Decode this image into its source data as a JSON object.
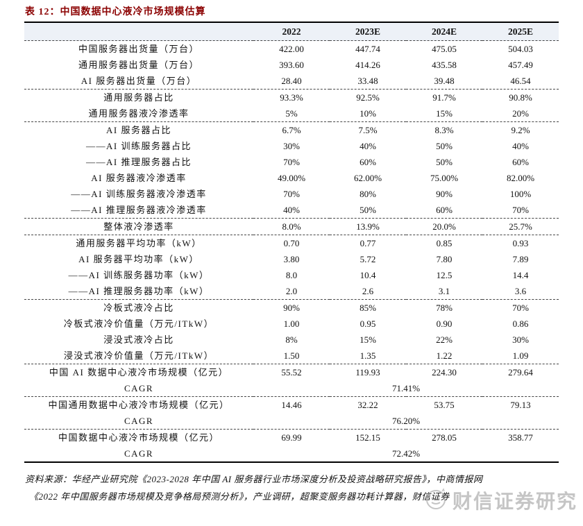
{
  "page": {
    "title": "表 12：中国数据中心液冷市场规模估算",
    "source_line1": "资料来源：华经产业研究院《2023-2028 年中国 AI 服务器行业市场深度分析及投资战略研究报告》，中商情报网",
    "source_line2": "《2022 年中国服务器市场规模及竞争格局预测分析》，产业调研，超聚变服务器功耗计算器，财信证券",
    "watermark": "财信证券研究"
  },
  "colors": {
    "title_red": "#8B0000",
    "header_bg": "#edf1f7",
    "border_black": "#000000",
    "watermark_gray": "#969696"
  },
  "table": {
    "columns": [
      "2022",
      "2023E",
      "2024E",
      "2025E"
    ],
    "rows": [
      {
        "label": "中国服务器出货量（万台）",
        "values": [
          "422.00",
          "447.74",
          "475.05",
          "504.03"
        ],
        "sep": false
      },
      {
        "label": "通用服务器出货量（万台）",
        "values": [
          "393.60",
          "414.26",
          "435.58",
          "457.49"
        ],
        "sep": false
      },
      {
        "label": "AI 服务器出货量（万台）",
        "values": [
          "28.40",
          "33.48",
          "39.48",
          "46.54"
        ],
        "sep": false
      },
      {
        "label": "通用服务器占比",
        "values": [
          "93.3%",
          "92.5%",
          "91.7%",
          "90.8%"
        ],
        "sep": true
      },
      {
        "label": "通用服务器液冷渗透率",
        "values": [
          "5%",
          "10%",
          "15%",
          "20%"
        ],
        "sep": false
      },
      {
        "label": "AI 服务器占比",
        "values": [
          "6.7%",
          "7.5%",
          "8.3%",
          "9.2%"
        ],
        "sep": true
      },
      {
        "label": "——AI 训练服务器占比",
        "values": [
          "30%",
          "40%",
          "50%",
          "40%"
        ],
        "sep": false
      },
      {
        "label": "——AI 推理服务器占比",
        "values": [
          "70%",
          "60%",
          "50%",
          "60%"
        ],
        "sep": false
      },
      {
        "label": "AI 服务器液冷渗透率",
        "values": [
          "49.00%",
          "62.00%",
          "75.00%",
          "82.00%"
        ],
        "sep": false
      },
      {
        "label": "——AI 训练服务器液冷渗透率",
        "values": [
          "70%",
          "80%",
          "90%",
          "100%"
        ],
        "sep": false
      },
      {
        "label": "——AI 推理服务器液冷渗透率",
        "values": [
          "40%",
          "50%",
          "60%",
          "70%"
        ],
        "sep": false
      },
      {
        "label": "整体液冷渗透率",
        "values": [
          "8.0%",
          "13.9%",
          "20.0%",
          "25.7%"
        ],
        "sep": true
      },
      {
        "label": "通用服务器平均功率（kW）",
        "values": [
          "0.70",
          "0.77",
          "0.85",
          "0.93"
        ],
        "sep": true
      },
      {
        "label": "AI 服务器平均功率（kW）",
        "values": [
          "3.80",
          "5.72",
          "7.80",
          "7.89"
        ],
        "sep": false
      },
      {
        "label": "——AI 训练服务器功率（kW）",
        "values": [
          "8.0",
          "10.4",
          "12.5",
          "14.4"
        ],
        "sep": false
      },
      {
        "label": "——AI 推理服务器功率（kW）",
        "values": [
          "2.0",
          "2.6",
          "3.1",
          "3.6"
        ],
        "sep": false
      },
      {
        "label": "冷板式液冷占比",
        "values": [
          "90%",
          "85%",
          "78%",
          "70%"
        ],
        "sep": true
      },
      {
        "label": "冷板式液冷价值量（万元/ITkW）",
        "values": [
          "1.00",
          "0.95",
          "0.90",
          "0.86"
        ],
        "sep": false
      },
      {
        "label": "浸没式液冷占比",
        "values": [
          "8%",
          "15%",
          "22%",
          "30%"
        ],
        "sep": false
      },
      {
        "label": "浸没式液冷价值量（万元/ITkW）",
        "values": [
          "1.50",
          "1.35",
          "1.22",
          "1.09"
        ],
        "sep": false
      },
      {
        "label": "中国 AI 数据中心液冷市场规模（亿元）",
        "values": [
          "55.52",
          "119.93",
          "224.30",
          "279.64"
        ],
        "sep": true
      },
      {
        "label": "CAGR",
        "merged": "71.41%",
        "sep": false
      },
      {
        "label": "中国通用数据中心液冷市场规模（亿元）",
        "values": [
          "14.46",
          "32.22",
          "53.75",
          "79.13"
        ],
        "sep": true
      },
      {
        "label": "CAGR",
        "merged": "76.20%",
        "sep": false
      },
      {
        "label": "中国数据中心液冷市场规模（亿元）",
        "values": [
          "69.99",
          "152.15",
          "278.05",
          "358.77"
        ],
        "sep": true
      },
      {
        "label": "CAGR",
        "merged": "72.42%",
        "sep": false
      }
    ]
  }
}
